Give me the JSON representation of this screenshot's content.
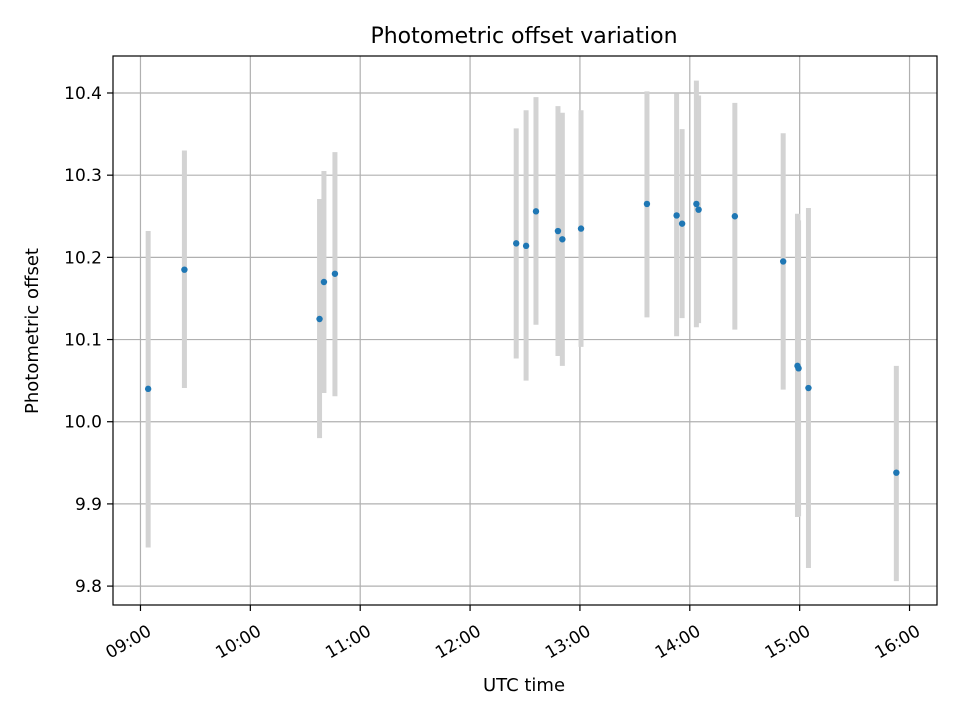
{
  "chart_data": {
    "type": "scatter",
    "title": "Photometric offset variation",
    "xlabel": "UTC time",
    "ylabel": "Photometric offset",
    "x_unit": "hours UTC",
    "xlim": [
      8.75,
      16.25
    ],
    "ylim": [
      9.777,
      10.445
    ],
    "x_ticks": [
      9,
      10,
      11,
      12,
      13,
      14,
      15,
      16
    ],
    "x_tick_labels": [
      "09:00",
      "10:00",
      "11:00",
      "12:00",
      "13:00",
      "14:00",
      "15:00",
      "16:00"
    ],
    "y_ticks": [
      9.8,
      9.9,
      10.0,
      10.1,
      10.2,
      10.3,
      10.4
    ],
    "y_tick_labels": [
      "9.8",
      "9.9",
      "10.0",
      "10.1",
      "10.2",
      "10.3",
      "10.4"
    ],
    "grid": true,
    "point_color": "#1f77b4",
    "errorbar_color": "#d3d3d3",
    "series": [
      {
        "points": [
          {
            "x": 9.07,
            "y": 10.04,
            "ylow": 9.847,
            "yhigh": 10.232
          },
          {
            "x": 9.4,
            "y": 10.185,
            "ylow": 10.041,
            "yhigh": 10.33
          },
          {
            "x": 10.63,
            "y": 10.125,
            "ylow": 9.98,
            "yhigh": 10.271
          },
          {
            "x": 10.67,
            "y": 10.17,
            "ylow": 10.035,
            "yhigh": 10.305
          },
          {
            "x": 10.77,
            "y": 10.18,
            "ylow": 10.031,
            "yhigh": 10.328
          },
          {
            "x": 12.42,
            "y": 10.217,
            "ylow": 10.077,
            "yhigh": 10.357
          },
          {
            "x": 12.51,
            "y": 10.214,
            "ylow": 10.05,
            "yhigh": 10.379
          },
          {
            "x": 12.6,
            "y": 10.256,
            "ylow": 10.118,
            "yhigh": 10.395
          },
          {
            "x": 12.8,
            "y": 10.232,
            "ylow": 10.08,
            "yhigh": 10.384
          },
          {
            "x": 12.84,
            "y": 10.222,
            "ylow": 10.068,
            "yhigh": 10.376
          },
          {
            "x": 13.01,
            "y": 10.235,
            "ylow": 10.091,
            "yhigh": 10.379
          },
          {
            "x": 13.61,
            "y": 10.265,
            "ylow": 10.127,
            "yhigh": 10.402
          },
          {
            "x": 13.88,
            "y": 10.251,
            "ylow": 10.104,
            "yhigh": 10.399
          },
          {
            "x": 13.93,
            "y": 10.241,
            "ylow": 10.126,
            "yhigh": 10.356
          },
          {
            "x": 14.06,
            "y": 10.265,
            "ylow": 10.115,
            "yhigh": 10.415
          },
          {
            "x": 14.08,
            "y": 10.258,
            "ylow": 10.12,
            "yhigh": 10.397
          },
          {
            "x": 14.41,
            "y": 10.25,
            "ylow": 10.112,
            "yhigh": 10.388
          },
          {
            "x": 14.85,
            "y": 10.195,
            "ylow": 10.039,
            "yhigh": 10.351
          },
          {
            "x": 14.98,
            "y": 10.068,
            "ylow": 9.884,
            "yhigh": 10.253
          },
          {
            "x": 14.99,
            "y": 10.065,
            "ylow": 9.885,
            "yhigh": 10.245
          },
          {
            "x": 15.08,
            "y": 10.041,
            "ylow": 9.822,
            "yhigh": 10.26
          },
          {
            "x": 15.88,
            "y": 9.938,
            "ylow": 9.806,
            "yhigh": 10.068
          }
        ]
      }
    ]
  }
}
